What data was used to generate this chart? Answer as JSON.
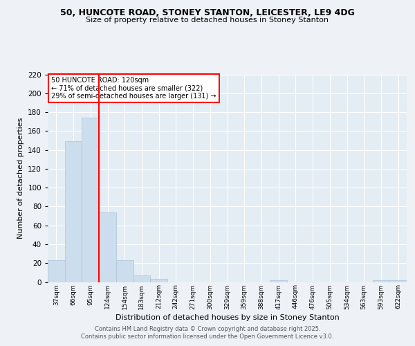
{
  "title1": "50, HUNCOTE ROAD, STONEY STANTON, LEICESTER, LE9 4DG",
  "title2": "Size of property relative to detached houses in Stoney Stanton",
  "xlabel": "Distribution of detached houses by size in Stoney Stanton",
  "ylabel": "Number of detached properties",
  "bin_labels": [
    "37sqm",
    "66sqm",
    "95sqm",
    "124sqm",
    "154sqm",
    "183sqm",
    "212sqm",
    "242sqm",
    "271sqm",
    "300sqm",
    "329sqm",
    "359sqm",
    "388sqm",
    "417sqm",
    "446sqm",
    "476sqm",
    "505sqm",
    "534sqm",
    "563sqm",
    "593sqm",
    "622sqm"
  ],
  "bar_heights": [
    23,
    149,
    174,
    74,
    23,
    7,
    3,
    0,
    0,
    0,
    0,
    0,
    0,
    2,
    0,
    0,
    0,
    0,
    0,
    2,
    2
  ],
  "bar_color": "#ccdded",
  "bar_edgecolor": "#aac4d8",
  "vline_x": 2.5,
  "annotation_text": "50 HUNCOTE ROAD: 120sqm\n← 71% of detached houses are smaller (322)\n29% of semi-detached houses are larger (131) →",
  "footer1": "Contains HM Land Registry data © Crown copyright and database right 2025.",
  "footer2": "Contains public sector information licensed under the Open Government Licence v3.0.",
  "ylim": [
    0,
    220
  ],
  "yticks": [
    0,
    20,
    40,
    60,
    80,
    100,
    120,
    140,
    160,
    180,
    200,
    220
  ],
  "bg_color": "#eef2f7",
  "plot_bg_color": "#e4ecf4"
}
